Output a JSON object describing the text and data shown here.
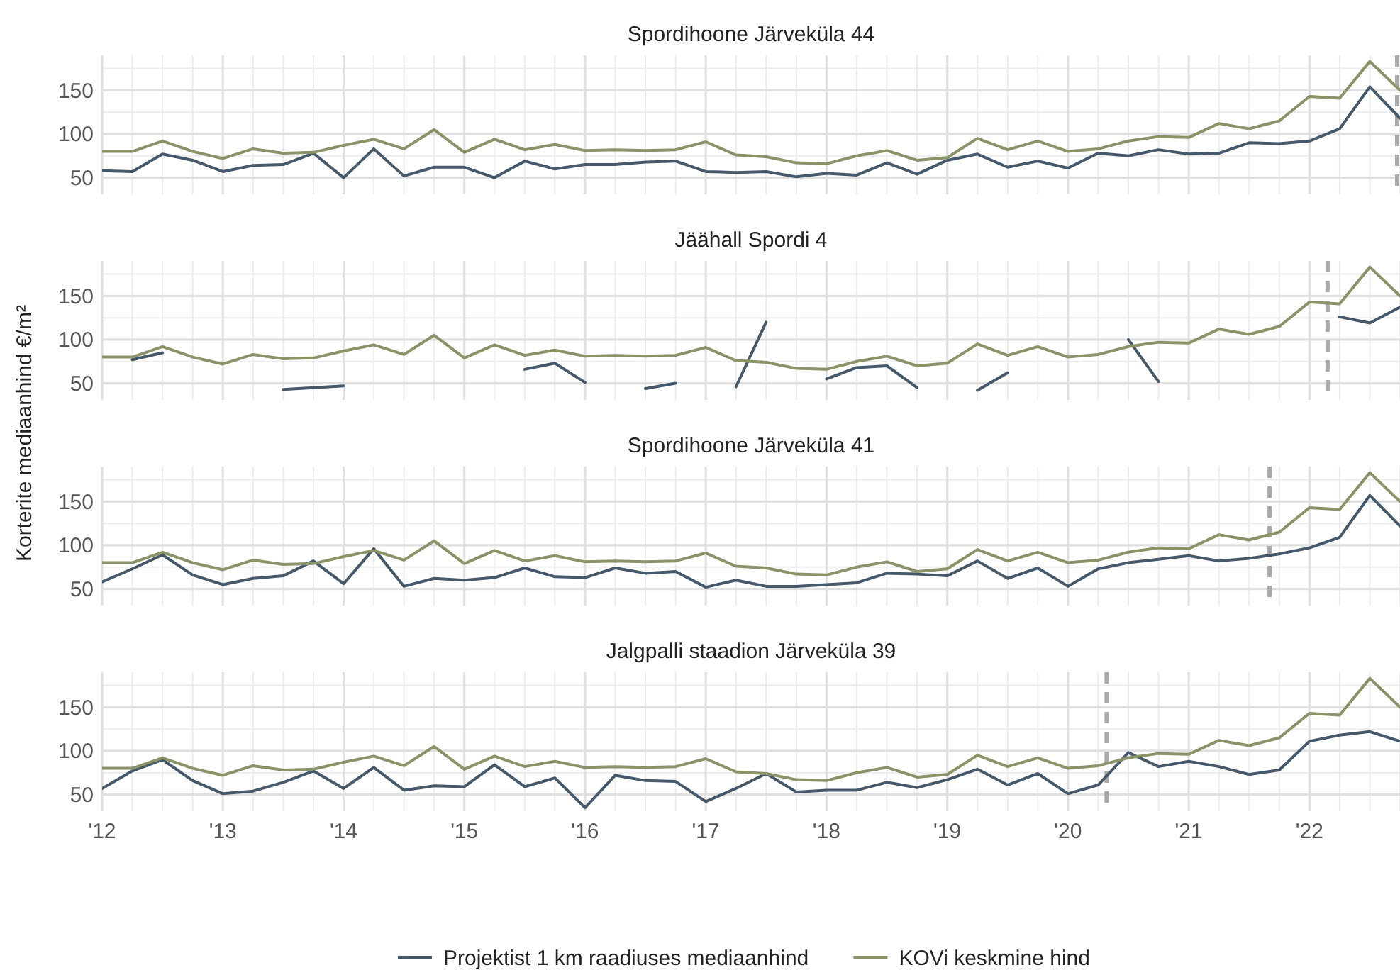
{
  "chart_data": [
    {
      "type": "line",
      "title": "Spordihoone Järveküla 44",
      "x": [
        2012,
        2012.25,
        2012.5,
        2012.75,
        2013,
        2013.25,
        2013.5,
        2013.75,
        2014,
        2014.25,
        2014.5,
        2014.75,
        2015,
        2015.25,
        2015.5,
        2015.75,
        2016,
        2016.25,
        2016.5,
        2016.75,
        2017,
        2017.25,
        2017.5,
        2017.75,
        2018,
        2018.25,
        2018.5,
        2018.75,
        2019,
        2019.25,
        2019.5,
        2019.75,
        2020,
        2020.25,
        2020.5,
        2020.75,
        2021,
        2021.25,
        2021.5,
        2021.75,
        2022,
        2022.25,
        2022.5,
        2022.75
      ],
      "xlim": [
        2012,
        2022.75
      ],
      "ylim": [
        31,
        190
      ],
      "yticks": [
        50,
        100,
        150
      ],
      "xticks": [
        2012,
        2013,
        2014,
        2015,
        2016,
        2017,
        2018,
        2019,
        2020,
        2021,
        2022
      ],
      "tick_labels": "y",
      "grid": true,
      "series": [
        {
          "color": "#45596a",
          "values": [
            58,
            57,
            77,
            70,
            57,
            64,
            65,
            78,
            50,
            83,
            52,
            62,
            62,
            50,
            69,
            60,
            65,
            65,
            68,
            69,
            57,
            56,
            57,
            51,
            55,
            53,
            67,
            54,
            70,
            77,
            62,
            69,
            61,
            78,
            75,
            82,
            77,
            78,
            90,
            89,
            92,
            106,
            154,
            118
          ]
        },
        {
          "color": "#8a9367",
          "values": [
            80,
            80,
            92,
            80,
            72,
            83,
            78,
            79,
            87,
            94,
            83,
            105,
            79,
            94,
            82,
            88,
            81,
            82,
            81,
            82,
            91,
            76,
            74,
            67,
            66,
            75,
            81,
            70,
            73,
            95,
            82,
            92,
            80,
            83,
            92,
            97,
            96,
            112,
            106,
            115,
            143,
            141,
            183,
            150
          ]
        }
      ],
      "ref_lines": [
        {
          "axis": "x",
          "value": 2022.75,
          "color": "#aaaaaa",
          "line_style": "dashed"
        }
      ]
    },
    {
      "type": "line",
      "title": "Jäähall Spordi 4",
      "ylabel": "Korterite mediaanhind €/m²",
      "x": [
        2012,
        2012.25,
        2012.5,
        2012.75,
        2013,
        2013.25,
        2013.5,
        2013.75,
        2014,
        2014.25,
        2014.5,
        2014.75,
        2015,
        2015.25,
        2015.5,
        2015.75,
        2016,
        2016.25,
        2016.5,
        2016.75,
        2017,
        2017.25,
        2017.5,
        2017.75,
        2018,
        2018.25,
        2018.5,
        2018.75,
        2019,
        2019.25,
        2019.5,
        2019.75,
        2020,
        2020.25,
        2020.5,
        2020.75,
        2021,
        2021.25,
        2021.5,
        2021.75,
        2022,
        2022.25,
        2022.5,
        2022.75
      ],
      "xlim": [
        2012,
        2022.75
      ],
      "ylim": [
        31,
        190
      ],
      "yticks": [
        50,
        100,
        150
      ],
      "xticks": [
        2012,
        2013,
        2014,
        2015,
        2016,
        2017,
        2018,
        2019,
        2020,
        2021,
        2022
      ],
      "tick_labels": "y",
      "grid": true,
      "series": [
        {
          "color": "#45596a",
          "values": [
            null,
            77,
            85,
            null,
            null,
            null,
            43,
            45,
            47,
            null,
            null,
            null,
            null,
            null,
            66,
            73,
            51,
            null,
            44,
            50,
            null,
            46,
            120,
            null,
            55,
            68,
            70,
            45,
            null,
            42,
            62,
            null,
            null,
            null,
            100,
            52,
            null,
            null,
            null,
            null,
            null,
            126,
            119,
            137
          ]
        },
        {
          "color": "#8a9367",
          "values": [
            80,
            80,
            92,
            80,
            72,
            83,
            78,
            79,
            87,
            94,
            83,
            105,
            79,
            94,
            82,
            88,
            81,
            82,
            81,
            82,
            91,
            76,
            74,
            67,
            66,
            75,
            81,
            70,
            73,
            95,
            82,
            92,
            80,
            83,
            92,
            97,
            96,
            112,
            106,
            115,
            143,
            141,
            183,
            150
          ]
        }
      ],
      "ref_lines": [
        {
          "axis": "x",
          "value": 2022.15,
          "color": "#aaaaaa",
          "line_style": "dashed"
        }
      ]
    },
    {
      "type": "line",
      "title": "Spordihoone Järveküla 41",
      "x": [
        2012,
        2012.25,
        2012.5,
        2012.75,
        2013,
        2013.25,
        2013.5,
        2013.75,
        2014,
        2014.25,
        2014.5,
        2014.75,
        2015,
        2015.25,
        2015.5,
        2015.75,
        2016,
        2016.25,
        2016.5,
        2016.75,
        2017,
        2017.25,
        2017.5,
        2017.75,
        2018,
        2018.25,
        2018.5,
        2018.75,
        2019,
        2019.25,
        2019.5,
        2019.75,
        2020,
        2020.25,
        2020.5,
        2020.75,
        2021,
        2021.25,
        2021.5,
        2021.75,
        2022,
        2022.25,
        2022.5,
        2022.75
      ],
      "xlim": [
        2012,
        2022.75
      ],
      "ylim": [
        31,
        190
      ],
      "yticks": [
        50,
        100,
        150
      ],
      "xticks": [
        2012,
        2013,
        2014,
        2015,
        2016,
        2017,
        2018,
        2019,
        2020,
        2021,
        2022
      ],
      "tick_labels": "y",
      "grid": true,
      "series": [
        {
          "color": "#45596a",
          "values": [
            58,
            73,
            89,
            66,
            55,
            62,
            65,
            82,
            56,
            96,
            53,
            62,
            60,
            63,
            74,
            64,
            63,
            74,
            68,
            70,
            52,
            60,
            53,
            53,
            55,
            57,
            68,
            67,
            65,
            82,
            62,
            74,
            53,
            73,
            80,
            84,
            88,
            82,
            85,
            90,
            97,
            109,
            157,
            122
          ]
        },
        {
          "color": "#8a9367",
          "values": [
            80,
            80,
            92,
            80,
            72,
            83,
            78,
            79,
            87,
            94,
            83,
            105,
            79,
            94,
            82,
            88,
            81,
            82,
            81,
            82,
            91,
            76,
            74,
            67,
            66,
            75,
            81,
            70,
            73,
            95,
            82,
            92,
            80,
            83,
            92,
            97,
            96,
            112,
            106,
            115,
            143,
            141,
            183,
            150
          ]
        }
      ],
      "ref_lines": [
        {
          "axis": "x",
          "value": 2021.67,
          "color": "#aaaaaa",
          "line_style": "dashed"
        }
      ]
    },
    {
      "type": "line",
      "title": "Jalgpalli staadion Järveküla 39",
      "x": [
        2012,
        2012.25,
        2012.5,
        2012.75,
        2013,
        2013.25,
        2013.5,
        2013.75,
        2014,
        2014.25,
        2014.5,
        2014.75,
        2015,
        2015.25,
        2015.5,
        2015.75,
        2016,
        2016.25,
        2016.5,
        2016.75,
        2017,
        2017.25,
        2017.5,
        2017.75,
        2018,
        2018.25,
        2018.5,
        2018.75,
        2019,
        2019.25,
        2019.5,
        2019.75,
        2020,
        2020.25,
        2020.5,
        2020.75,
        2021,
        2021.25,
        2021.5,
        2021.75,
        2022,
        2022.25,
        2022.5,
        2022.75
      ],
      "xlim": [
        2012,
        2022.75
      ],
      "ylim": [
        31,
        190
      ],
      "yticks": [
        50,
        100,
        150
      ],
      "xticks": [
        {
          "value": 2012,
          "label": "'12"
        },
        {
          "value": 2013,
          "label": "'13"
        },
        {
          "value": 2014,
          "label": "'14"
        },
        {
          "value": 2015,
          "label": "'15"
        },
        {
          "value": 2016,
          "label": "'16"
        },
        {
          "value": 2017,
          "label": "'17"
        },
        {
          "value": 2018,
          "label": "'18"
        },
        {
          "value": 2019,
          "label": "'19"
        },
        {
          "value": 2020,
          "label": "'20"
        },
        {
          "value": 2021,
          "label": "'21"
        },
        {
          "value": 2022,
          "label": "'22"
        }
      ],
      "grid": true,
      "legend": "bottom",
      "series": [
        {
          "name": "Projektist 1 km raadiuses mediaanhind",
          "color": "#45596a",
          "values": [
            57,
            77,
            90,
            66,
            51,
            54,
            64,
            77,
            57,
            81,
            55,
            60,
            59,
            84,
            59,
            69,
            35,
            72,
            66,
            65,
            42,
            57,
            74,
            53,
            55,
            55,
            64,
            58,
            67,
            79,
            61,
            74,
            51,
            61,
            98,
            82,
            88,
            82,
            73,
            78,
            111,
            118,
            122,
            111
          ]
        },
        {
          "name": "KOVi keskmine hind",
          "color": "#8a9367",
          "values": [
            80,
            80,
            92,
            80,
            72,
            83,
            78,
            79,
            87,
            94,
            83,
            105,
            79,
            94,
            82,
            88,
            81,
            82,
            81,
            82,
            91,
            76,
            74,
            67,
            66,
            75,
            81,
            70,
            73,
            95,
            82,
            92,
            80,
            83,
            92,
            97,
            96,
            112,
            106,
            115,
            143,
            141,
            183,
            150
          ]
        }
      ],
      "ref_lines": [
        {
          "axis": "x",
          "value": 2020.32,
          "color": "#aaaaaa",
          "line_style": "dashed"
        }
      ]
    }
  ]
}
